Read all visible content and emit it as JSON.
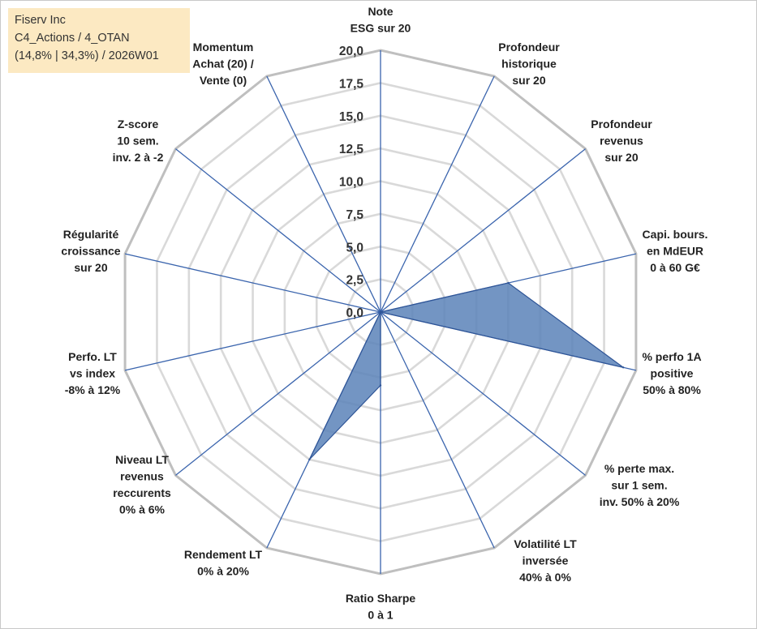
{
  "info": {
    "company": "Fiserv Inc",
    "category": "C4_Actions / 4_OTAN",
    "stats": "(14,8% | 34,3%) / 2026W01"
  },
  "chart_data": {
    "type": "radar",
    "rmin": 0,
    "rmax": 20,
    "tick_step": 2.5,
    "ticks": [
      "0,0",
      "2,5",
      "5,0",
      "7,5",
      "10,0",
      "12,5",
      "15,0",
      "17,5",
      "20,0"
    ],
    "axes": [
      [
        "Note",
        "ESG sur 20"
      ],
      [
        "Profondeur",
        "historique",
        "sur 20"
      ],
      [
        "Profondeur",
        "revenus",
        "sur 20"
      ],
      [
        "Capi. bours.",
        "en MdEUR",
        "0 à 60 G€"
      ],
      [
        "% perfo 1A",
        "positive",
        "50% à 80%"
      ],
      [
        "% perte max.",
        "sur 1 sem.",
        "inv. 50% à 20%"
      ],
      [
        "Volatilité LT",
        "inversée",
        "40% à 0%"
      ],
      [
        "Ratio Sharpe",
        "0 à 1"
      ],
      [
        "Rendement LT",
        "0% à 20%"
      ],
      [
        "Niveau LT",
        "revenus",
        "reccurents",
        "0% à 6%"
      ],
      [
        "Perfo. LT",
        "vs index",
        "-8% à 12%"
      ],
      [
        "Régularité",
        "croissance",
        "sur 20"
      ],
      [
        "Z-score",
        "10 sem.",
        "inv. 2 à -2"
      ],
      [
        "Momentum",
        "Achat (20) /",
        "Vente (0)"
      ]
    ],
    "values": [
      0,
      0,
      0,
      10,
      19,
      0,
      0,
      5.6,
      12.5,
      0,
      0,
      0,
      0,
      0
    ],
    "colors": {
      "fill": "#5b82b9",
      "stroke": "#2f5597",
      "spoke": "#3a64ad",
      "grid_outer": "#bfbfbf",
      "grid_inner": "#d9d9d9"
    }
  }
}
